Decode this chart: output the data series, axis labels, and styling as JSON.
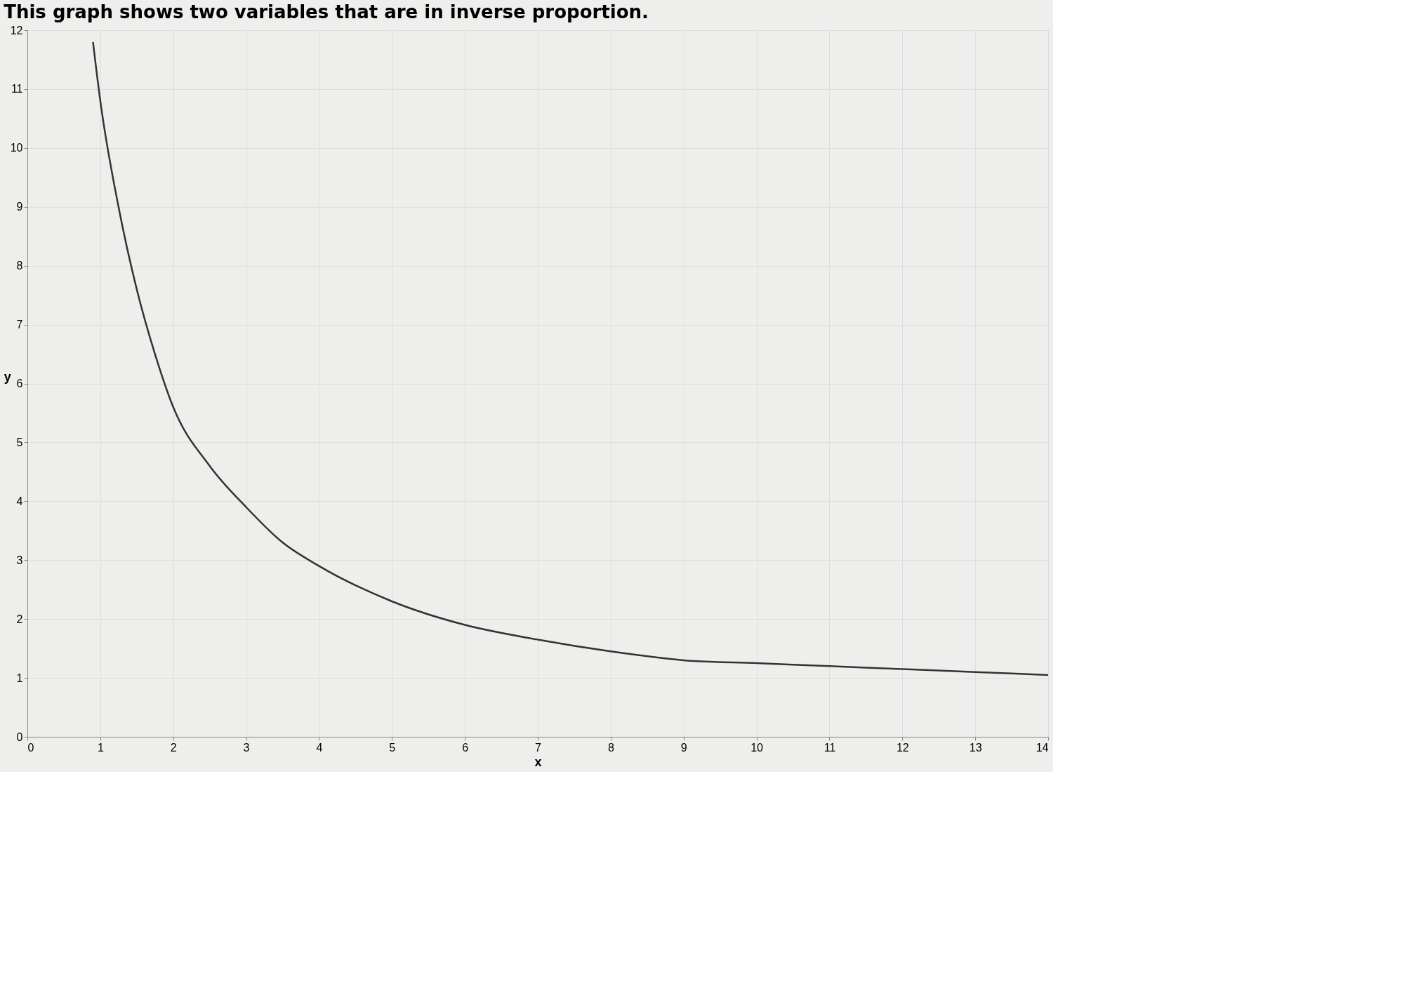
{
  "chart_data": {
    "type": "line",
    "title": "This graph shows two variables that are in inverse proportion.",
    "xlabel": "x",
    "ylabel": "y",
    "x": [
      0.9,
      1,
      1.25,
      1.5,
      1.75,
      2,
      2.5,
      3,
      3.5,
      4,
      5,
      6,
      7,
      8,
      9,
      10,
      11,
      12,
      13,
      14
    ],
    "series": [
      {
        "color": "#333333",
        "values": [
          11.8,
          10.8,
          9.0,
          7.6,
          6.5,
          5.6,
          4.6,
          3.9,
          3.3,
          2.9,
          2.3,
          1.9,
          1.65,
          1.45,
          1.3,
          1.25,
          1.2,
          1.15,
          1.1,
          1.05
        ]
      }
    ],
    "xlim": [
      0,
      14
    ],
    "ylim": [
      0,
      12
    ],
    "xticks": [
      0,
      1,
      2,
      3,
      4,
      5,
      6,
      7,
      8,
      9,
      10,
      11,
      12,
      13,
      14
    ],
    "yticks": [
      0,
      1,
      2,
      3,
      4,
      5,
      6,
      7,
      8,
      9,
      10,
      11,
      12
    ],
    "grid": true,
    "marker": "none",
    "line_style": "solid",
    "legend": false
  }
}
